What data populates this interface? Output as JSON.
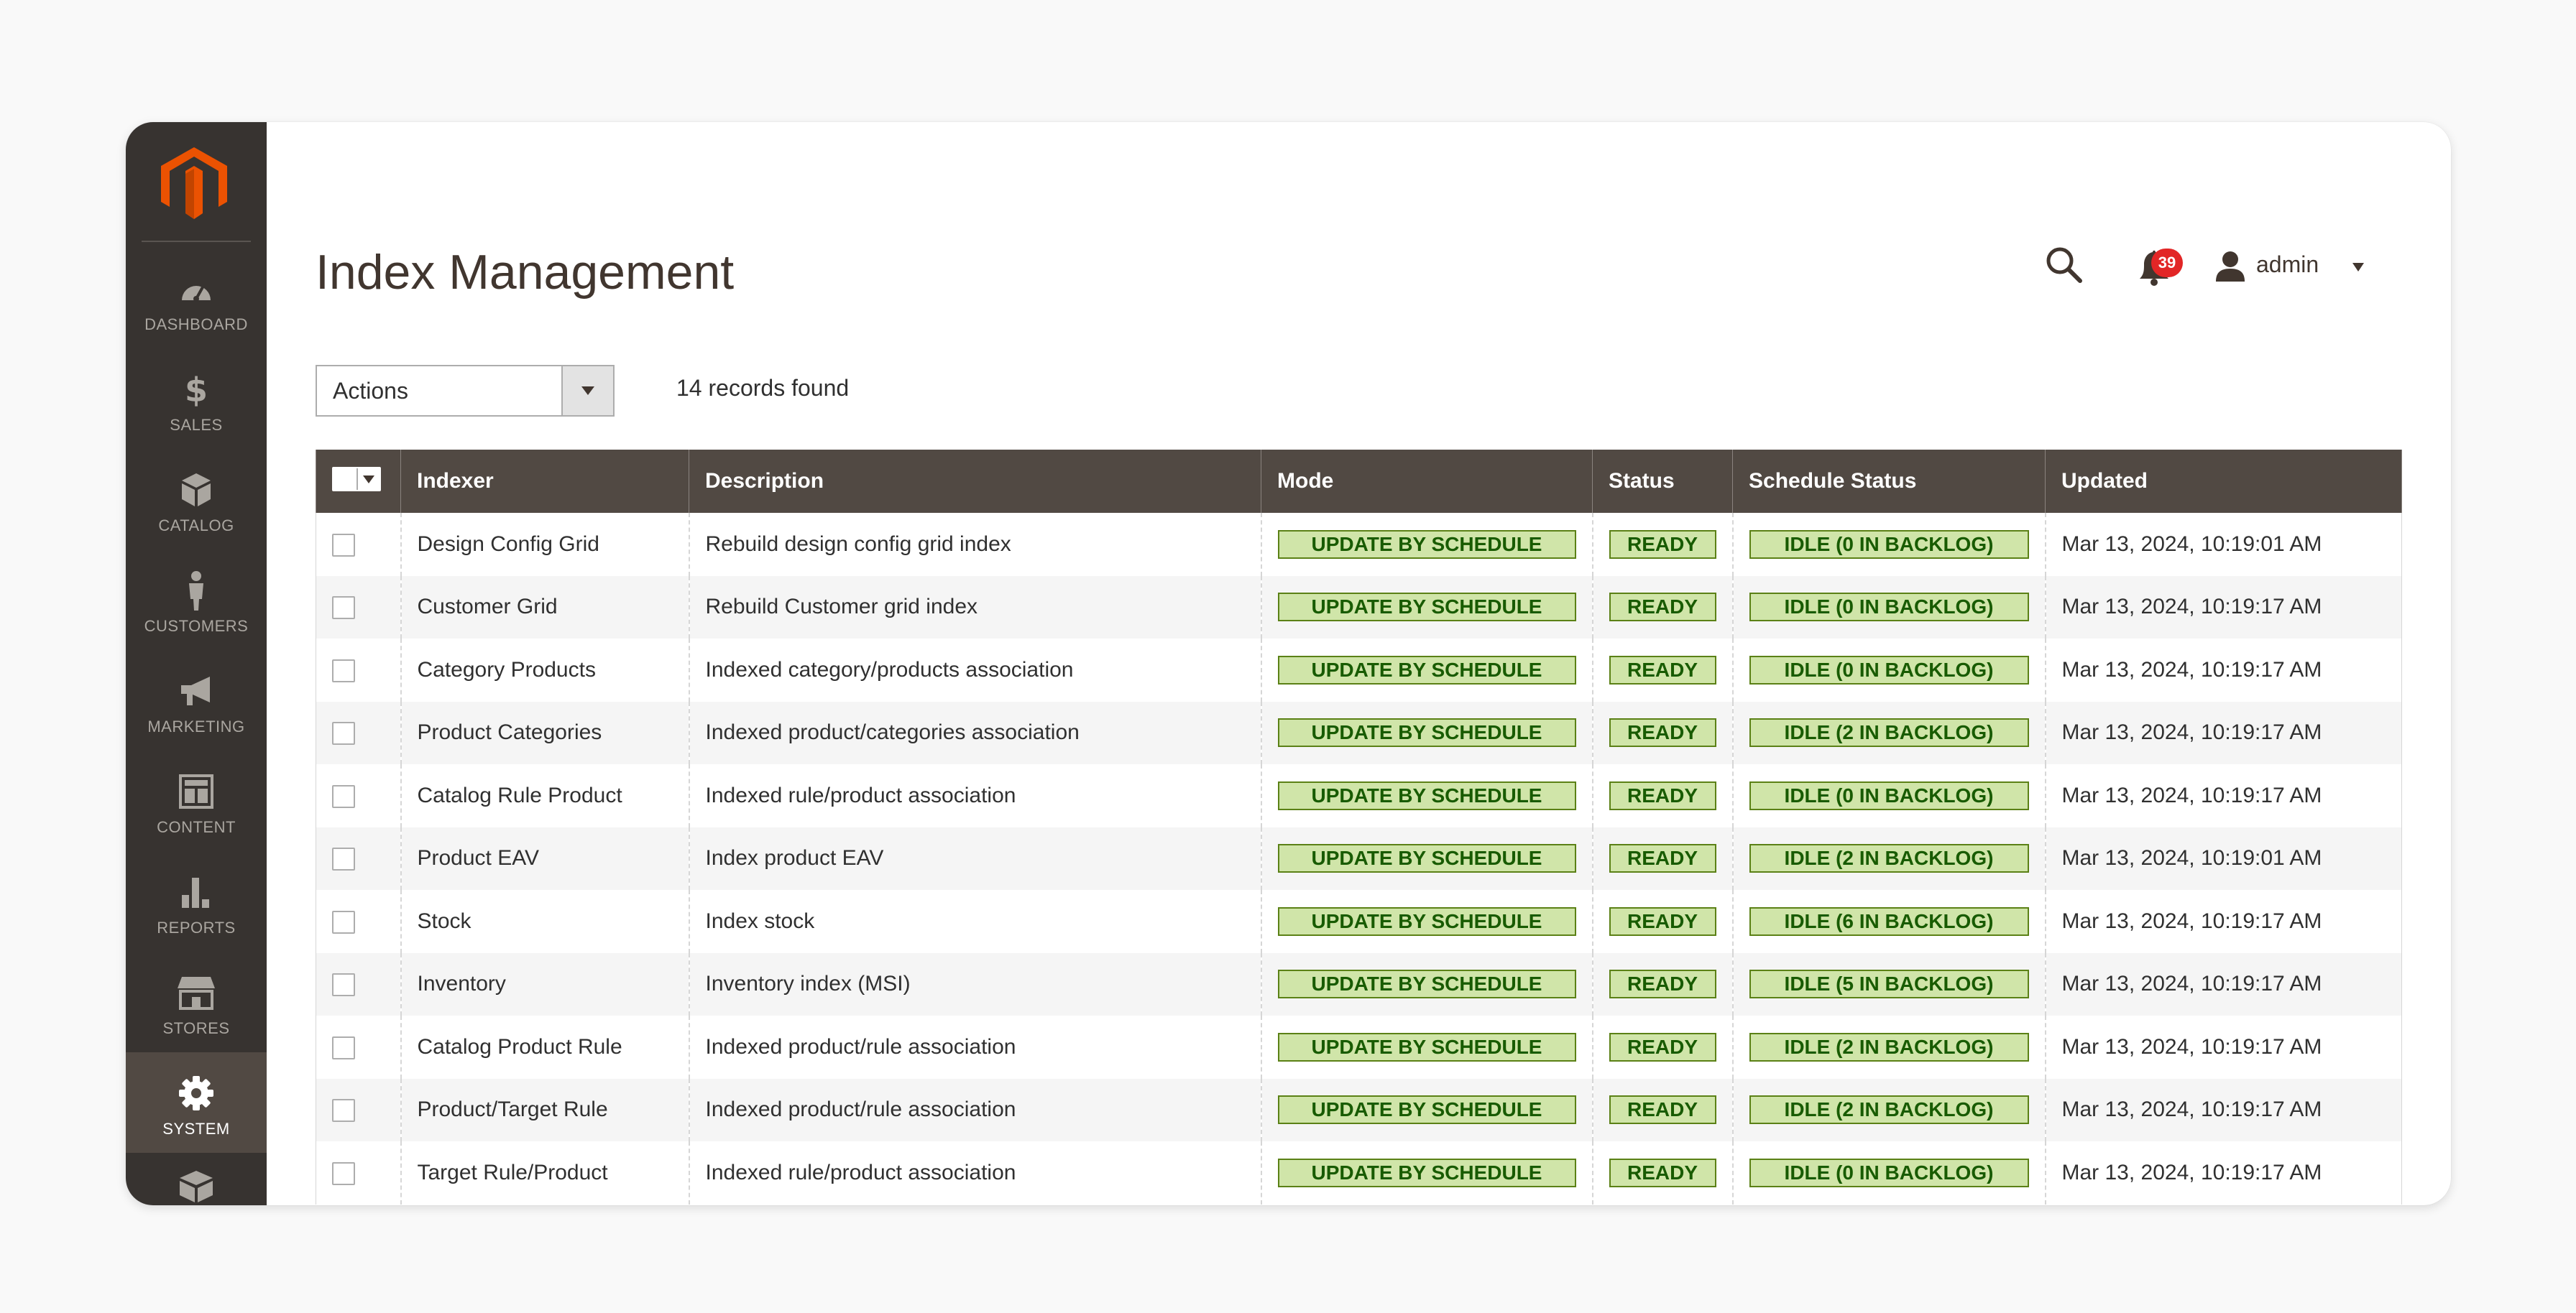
{
  "sidebar": {
    "items": [
      {
        "label": "DASHBOARD",
        "icon": "dashboard-icon",
        "active": false
      },
      {
        "label": "SALES",
        "icon": "dollar-icon",
        "active": false
      },
      {
        "label": "CATALOG",
        "icon": "catalog-box-icon",
        "active": false
      },
      {
        "label": "CUSTOMERS",
        "icon": "customer-person-icon",
        "active": false
      },
      {
        "label": "MARKETING",
        "icon": "megaphone-icon",
        "active": false
      },
      {
        "label": "CONTENT",
        "icon": "layout-icon",
        "active": false
      },
      {
        "label": "REPORTS",
        "icon": "bar-chart-icon",
        "active": false
      },
      {
        "label": "STORES",
        "icon": "storefront-icon",
        "active": false
      },
      {
        "label": "SYSTEM",
        "icon": "gear-icon",
        "active": true
      }
    ]
  },
  "header": {
    "title": "Index Management",
    "notifications_count": "39",
    "user": "admin"
  },
  "toolbar": {
    "actions_label": "Actions",
    "records_found": "14 records found"
  },
  "grid": {
    "columns": [
      "Indexer",
      "Description",
      "Mode",
      "Status",
      "Schedule Status",
      "Updated"
    ],
    "rows": [
      {
        "indexer": "Design Config Grid",
        "description": "Rebuild design config grid index",
        "mode": "UPDATE BY SCHEDULE",
        "status": "READY",
        "schedule": "IDLE (0 IN BACKLOG)",
        "updated": "Mar 13, 2024, 10:19:01 AM"
      },
      {
        "indexer": "Customer Grid",
        "description": "Rebuild Customer grid index",
        "mode": "UPDATE BY SCHEDULE",
        "status": "READY",
        "schedule": "IDLE (0 IN BACKLOG)",
        "updated": "Mar 13, 2024, 10:19:17 AM"
      },
      {
        "indexer": "Category Products",
        "description": "Indexed category/products association",
        "mode": "UPDATE BY SCHEDULE",
        "status": "READY",
        "schedule": "IDLE (0 IN BACKLOG)",
        "updated": "Mar 13, 2024, 10:19:17 AM"
      },
      {
        "indexer": "Product Categories",
        "description": "Indexed product/categories association",
        "mode": "UPDATE BY SCHEDULE",
        "status": "READY",
        "schedule": "IDLE (2 IN BACKLOG)",
        "updated": "Mar 13, 2024, 10:19:17 AM"
      },
      {
        "indexer": "Catalog Rule Product",
        "description": "Indexed rule/product association",
        "mode": "UPDATE BY SCHEDULE",
        "status": "READY",
        "schedule": "IDLE (0 IN BACKLOG)",
        "updated": "Mar 13, 2024, 10:19:17 AM"
      },
      {
        "indexer": "Product EAV",
        "description": "Index product EAV",
        "mode": "UPDATE BY SCHEDULE",
        "status": "READY",
        "schedule": "IDLE (2 IN BACKLOG)",
        "updated": "Mar 13, 2024, 10:19:01 AM"
      },
      {
        "indexer": "Stock",
        "description": "Index stock",
        "mode": "UPDATE BY SCHEDULE",
        "status": "READY",
        "schedule": "IDLE (6 IN BACKLOG)",
        "updated": "Mar 13, 2024, 10:19:17 AM"
      },
      {
        "indexer": "Inventory",
        "description": "Inventory index (MSI)",
        "mode": "UPDATE BY SCHEDULE",
        "status": "READY",
        "schedule": "IDLE (5 IN BACKLOG)",
        "updated": "Mar 13, 2024, 10:19:17 AM"
      },
      {
        "indexer": "Catalog Product Rule",
        "description": "Indexed product/rule association",
        "mode": "UPDATE BY SCHEDULE",
        "status": "READY",
        "schedule": "IDLE (2 IN BACKLOG)",
        "updated": "Mar 13, 2024, 10:19:17 AM"
      },
      {
        "indexer": "Product/Target Rule",
        "description": "Indexed product/rule association",
        "mode": "UPDATE BY SCHEDULE",
        "status": "READY",
        "schedule": "IDLE (2 IN BACKLOG)",
        "updated": "Mar 13, 2024, 10:19:17 AM"
      },
      {
        "indexer": "Target Rule/Product",
        "description": "Indexed rule/product association",
        "mode": "UPDATE BY SCHEDULE",
        "status": "READY",
        "schedule": "IDLE (0 IN BACKLOG)",
        "updated": "Mar 13, 2024, 10:19:17 AM"
      }
    ]
  },
  "colors": {
    "sidebar_bg": "#373330",
    "sidebar_active": "#514943",
    "header_bg": "#514943",
    "logo_orange": "#eb5202",
    "pill_bg": "#d0e5a9",
    "pill_border": "#5b8116",
    "pill_text": "#185b00",
    "badge_red": "#e22626"
  }
}
